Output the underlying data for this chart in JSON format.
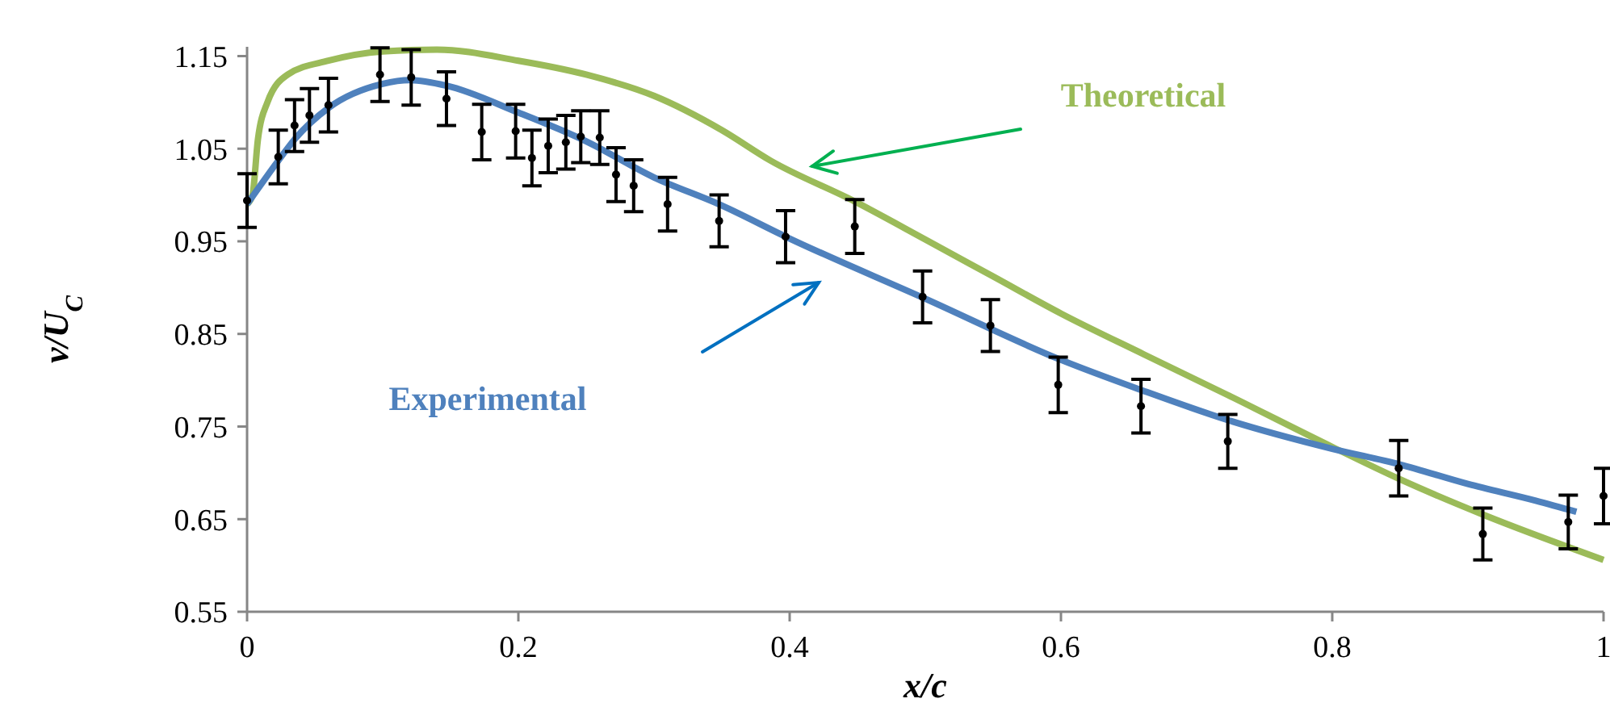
{
  "chart_data": {
    "type": "line",
    "xlabel": "x/c",
    "ylabel": "v/U$_{C}$",
    "xlim": [
      0,
      1
    ],
    "ylim": [
      0.55,
      1.16
    ],
    "xticks": [
      0,
      0.2,
      0.4,
      0.6,
      0.8,
      1
    ],
    "yticks": [
      0.55,
      0.65,
      0.75,
      0.85,
      0.95,
      1.05,
      1.15
    ],
    "grid": false,
    "series": [
      {
        "name": "Theoretical",
        "color": "#9bbb59",
        "x": [
          0,
          0.004,
          0.008,
          0.015,
          0.03,
          0.06,
          0.1,
          0.14,
          0.2,
          0.25,
          0.3,
          0.35,
          0.386,
          0.448,
          0.5,
          0.55,
          0.6,
          0.661,
          0.723,
          0.8,
          0.85,
          0.911,
          1
        ],
        "values": [
          0.99,
          1.0,
          1.06,
          1.1,
          1.13,
          1.145,
          1.155,
          1.157,
          1.145,
          1.13,
          1.107,
          1.07,
          1.037,
          0.993,
          0.952,
          0.912,
          0.872,
          0.828,
          0.784,
          0.728,
          0.693,
          0.655,
          0.606
        ]
      },
      {
        "name": "Experimental",
        "color": "#4f81bd",
        "x": [
          0,
          0.023,
          0.035,
          0.06,
          0.1,
          0.12,
          0.147,
          0.2,
          0.25,
          0.3,
          0.348,
          0.4,
          0.5,
          0.6,
          0.66,
          0.723,
          0.8,
          0.85,
          0.9,
          0.95,
          0.98
        ],
        "values": [
          0.99,
          1.037,
          1.06,
          1.094,
          1.12,
          1.124,
          1.118,
          1.089,
          1.058,
          1.019,
          0.99,
          0.953,
          0.888,
          0.822,
          0.789,
          0.757,
          0.726,
          0.709,
          0.688,
          0.67,
          0.658
        ]
      },
      {
        "type": "scatter",
        "marker": "circle",
        "color": "#000000",
        "x": [
          0,
          0.023,
          0.035,
          0.046,
          0.06,
          0.098,
          0.121,
          0.147,
          0.173,
          0.198,
          0.21,
          0.222,
          0.235,
          0.246,
          0.26,
          0.272,
          0.285,
          0.31,
          0.348,
          0.397,
          0.448,
          0.498,
          0.548,
          0.598,
          0.659,
          0.723,
          0.849,
          0.911,
          0.974,
          1
        ],
        "values": [
          0.994,
          1.041,
          1.075,
          1.086,
          1.097,
          1.13,
          1.127,
          1.104,
          1.068,
          1.069,
          1.04,
          1.053,
          1.057,
          1.063,
          1.062,
          1.022,
          1.01,
          0.99,
          0.972,
          0.955,
          0.966,
          0.89,
          0.859,
          0.795,
          0.772,
          0.734,
          0.705,
          0.634,
          0.647,
          0.675
        ],
        "errors": [
          0.029,
          0.029,
          0.028,
          0.029,
          0.029,
          0.029,
          0.03,
          0.029,
          0.03,
          0.029,
          0.03,
          0.029,
          0.029,
          0.028,
          0.029,
          0.029,
          0.028,
          0.029,
          0.028,
          0.028,
          0.029,
          0.028,
          0.028,
          0.03,
          0.029,
          0.029,
          0.03,
          0.028,
          0.029,
          0.03
        ]
      }
    ]
  }
}
